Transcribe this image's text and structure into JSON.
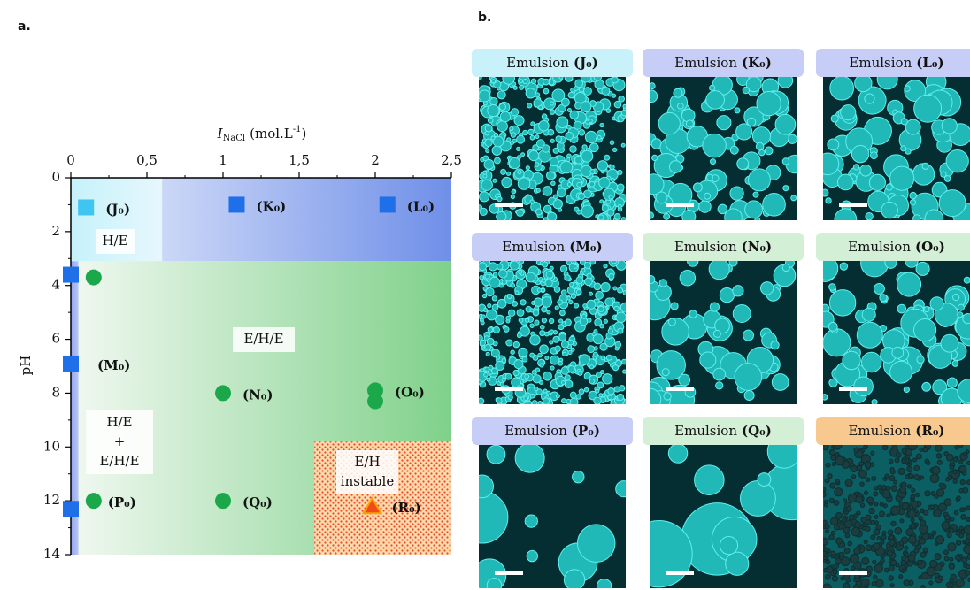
{
  "panel_labels": [
    "a.",
    "b."
  ],
  "chart_data": {
    "type": "scatter",
    "x_label": {
      "symbol": "I",
      "subscript": "NaCl",
      "unit": "(mol.L",
      "superscript": "-1",
      "unit_end": ")"
    },
    "y_label": "pH",
    "x_axis_position": "top",
    "y_inverted": true,
    "xlim": [
      0,
      2.5
    ],
    "ylim": [
      0,
      14
    ],
    "xticks": [
      0,
      {
        "value": 0.5,
        "label": "0,5"
      },
      1,
      {
        "value": 1.5,
        "label": "1,5"
      },
      2,
      {
        "value": 2.5,
        "label": "2,5"
      }
    ],
    "yticks": [
      0,
      2,
      4,
      6,
      8,
      10,
      12,
      14
    ],
    "regions": [
      {
        "x": [
          0,
          2.5
        ],
        "y": [
          0,
          3.1
        ],
        "colors": [
          "#e8eefc",
          "#6f8fe8"
        ]
      },
      {
        "x": [
          0,
          0.6
        ],
        "y": [
          0,
          3.1
        ],
        "colors": [
          "#c6f2fb",
          "#e6f7fc"
        ]
      },
      {
        "x": [
          0,
          2.5
        ],
        "y": [
          3.1,
          14
        ],
        "colors": [
          "#f1f8f1",
          "#7fd18a"
        ]
      },
      {
        "x": [
          0,
          0.05
        ],
        "y": [
          3.1,
          14
        ],
        "colors": [
          "#8ea4f0",
          "#b8c6f4"
        ]
      },
      {
        "x": [
          1.6,
          2.5
        ],
        "y": [
          9.8,
          14
        ],
        "colors": [
          "#fdd9ac",
          "#e84a2a"
        ],
        "pattern": "dots"
      }
    ],
    "region_labels": [
      [
        "H/E"
      ],
      [
        "E/H/E"
      ],
      [
        "H/E",
        "+",
        "E/H/E"
      ],
      [
        "E/H",
        "instable"
      ]
    ],
    "series": [
      {
        "marker": "square",
        "color": "#3fc6f0",
        "x": [
          0.1
        ],
        "y": [
          1.1
        ],
        "labels": [
          "(J₀)"
        ]
      },
      {
        "marker": "square",
        "color": "#1f6fe8",
        "x": [
          1.09,
          2.08,
          0,
          0,
          0
        ],
        "y": [
          1.0,
          1.0,
          3.6,
          6.9,
          12.3
        ],
        "labels": [
          "(K₀)",
          "(L₀)",
          null,
          "(M₀)",
          null
        ]
      },
      {
        "marker": "circle",
        "color": "#1aa84a",
        "x": [
          0.15,
          1.0,
          2.0,
          2.0,
          0.15,
          1.0
        ],
        "y": [
          3.7,
          8.0,
          7.9,
          8.3,
          12.0,
          12.0
        ],
        "labels": [
          null,
          "(N₀)",
          "(O₀)",
          null,
          "(P₀)",
          "(Q₀)"
        ]
      },
      {
        "marker": "triangle",
        "color": "#f24a1a",
        "edge_color": "#f5a500",
        "x": [
          1.98
        ],
        "y": [
          12.2
        ],
        "labels": [
          "(R₀)"
        ]
      }
    ]
  },
  "micrographs": [
    {
      "prefix": "Emulsion",
      "sample": "(J₀)",
      "color": "#c8f1f9"
    },
    {
      "prefix": "Emulsion",
      "sample": "(K₀)",
      "color": "#c6cdf6"
    },
    {
      "prefix": "Emulsion",
      "sample": "(L₀)",
      "color": "#c6cdf6"
    },
    {
      "prefix": "Emulsion",
      "sample": "(M₀)",
      "color": "#c6cdf6"
    },
    {
      "prefix": "Emulsion",
      "sample": "(N₀)",
      "color": "#d3efd6"
    },
    {
      "prefix": "Emulsion",
      "sample": "(O₀)",
      "color": "#d3efd6"
    },
    {
      "prefix": "Emulsion",
      "sample": "(P₀)",
      "color": "#c6cdf6"
    },
    {
      "prefix": "Emulsion",
      "sample": "(Q₀)",
      "color": "#d3efd6"
    },
    {
      "prefix": "Emulsion",
      "sample": "(R₀)",
      "color": "#f8c98f"
    }
  ]
}
